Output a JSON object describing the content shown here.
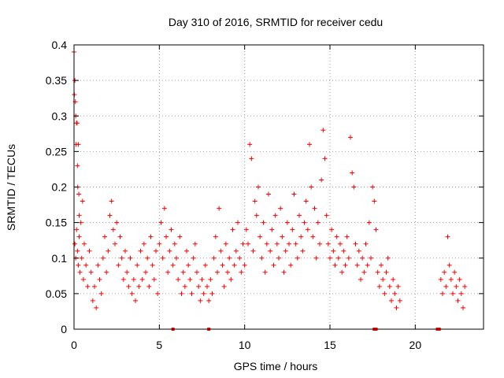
{
  "chart_data": {
    "type": "scatter",
    "title": "Day 310 of 2016, SRMTID for receiver cedu",
    "xlabel": "GPS time / hours",
    "ylabel": "SRMTID / TECUs",
    "xlim": [
      0,
      24
    ],
    "ylim": [
      0,
      0.4
    ],
    "x_ticks": [
      0,
      5,
      10,
      15,
      20
    ],
    "x_tick_labels": [
      "0",
      "5",
      "10",
      "15",
      "20"
    ],
    "y_ticks": [
      0,
      0.05,
      0.1,
      0.15,
      0.2,
      0.25,
      0.3,
      0.35,
      0.4
    ],
    "y_tick_labels": [
      "0",
      "0.05",
      "0.1",
      "0.15",
      "0.2",
      "0.25",
      "0.3",
      "0.35",
      "0.4"
    ],
    "grid": true,
    "marker": "+",
    "color": "#ff0000",
    "series": [
      {
        "name": "SRMTID",
        "points": [
          [
            0.0,
            0.39
          ],
          [
            0.02,
            0.33
          ],
          [
            0.05,
            0.35
          ],
          [
            0.08,
            0.32
          ],
          [
            0.1,
            0.3
          ],
          [
            0.12,
            0.26
          ],
          [
            0.15,
            0.29
          ],
          [
            0.18,
            0.29
          ],
          [
            0.2,
            0.23
          ],
          [
            0.22,
            0.2
          ],
          [
            0.25,
            0.26
          ],
          [
            0.28,
            0.19
          ],
          [
            0.3,
            0.16
          ],
          [
            0.05,
            0.12
          ],
          [
            0.1,
            0.1
          ],
          [
            0.15,
            0.14
          ],
          [
            0.2,
            0.11
          ],
          [
            0.25,
            0.09
          ],
          [
            0.3,
            0.13
          ],
          [
            0.35,
            0.08
          ],
          [
            0.4,
            0.15
          ],
          [
            0.45,
            0.1
          ],
          [
            0.5,
            0.18
          ],
          [
            0.55,
            0.07
          ],
          [
            0.6,
            0.12
          ],
          [
            0.7,
            0.09
          ],
          [
            0.8,
            0.06
          ],
          [
            0.9,
            0.11
          ],
          [
            1.0,
            0.08
          ],
          [
            1.1,
            0.04
          ],
          [
            1.2,
            0.06
          ],
          [
            1.3,
            0.03
          ],
          [
            1.4,
            0.09
          ],
          [
            1.5,
            0.07
          ],
          [
            1.6,
            0.05
          ],
          [
            1.7,
            0.1
          ],
          [
            1.8,
            0.13
          ],
          [
            1.9,
            0.08
          ],
          [
            2.0,
            0.11
          ],
          [
            2.1,
            0.16
          ],
          [
            2.2,
            0.18
          ],
          [
            2.3,
            0.14
          ],
          [
            2.4,
            0.12
          ],
          [
            2.5,
            0.15
          ],
          [
            2.6,
            0.09
          ],
          [
            2.7,
            0.13
          ],
          [
            2.8,
            0.1
          ],
          [
            2.9,
            0.07
          ],
          [
            3.0,
            0.11
          ],
          [
            3.1,
            0.08
          ],
          [
            3.2,
            0.06
          ],
          [
            3.3,
            0.1
          ],
          [
            3.4,
            0.05
          ],
          [
            3.5,
            0.07
          ],
          [
            3.6,
            0.04
          ],
          [
            3.7,
            0.09
          ],
          [
            3.8,
            0.06
          ],
          [
            3.9,
            0.11
          ],
          [
            4.0,
            0.07
          ],
          [
            4.1,
            0.12
          ],
          [
            4.2,
            0.08
          ],
          [
            4.3,
            0.1
          ],
          [
            4.4,
            0.06
          ],
          [
            4.5,
            0.13
          ],
          [
            4.6,
            0.09
          ],
          [
            4.7,
            0.07
          ],
          [
            4.8,
            0.11
          ],
          [
            4.9,
            0.05
          ],
          [
            5.0,
            0.12
          ],
          [
            5.1,
            0.15
          ],
          [
            5.2,
            0.1
          ],
          [
            5.3,
            0.17
          ],
          [
            5.4,
            0.13
          ],
          [
            5.5,
            0.08
          ],
          [
            5.6,
            0.11
          ],
          [
            5.7,
            0.14
          ],
          [
            5.8,
            0.09
          ],
          [
            5.9,
            0.12
          ],
          [
            6.0,
            0.1
          ],
          [
            6.1,
            0.07
          ],
          [
            6.2,
            0.13
          ],
          [
            6.3,
            0.05
          ],
          [
            6.4,
            0.08
          ],
          [
            6.5,
            0.06
          ],
          [
            6.6,
            0.11
          ],
          [
            6.7,
            0.09
          ],
          [
            6.8,
            0.07
          ],
          [
            6.9,
            0.05
          ],
          [
            7.0,
            0.1
          ],
          [
            7.1,
            0.12
          ],
          [
            7.2,
            0.08
          ],
          [
            7.3,
            0.06
          ],
          [
            7.4,
            0.04
          ],
          [
            7.5,
            0.07
          ],
          [
            7.6,
            0.05
          ],
          [
            7.7,
            0.09
          ],
          [
            7.8,
            0.06
          ],
          [
            7.9,
            0.04
          ],
          [
            8.0,
            0.07
          ],
          [
            8.1,
            0.05
          ],
          [
            8.2,
            0.1
          ],
          [
            8.3,
            0.13
          ],
          [
            8.4,
            0.08
          ],
          [
            8.5,
            0.17
          ],
          [
            8.6,
            0.11
          ],
          [
            8.7,
            0.09
          ],
          [
            8.8,
            0.06
          ],
          [
            8.9,
            0.12
          ],
          [
            9.0,
            0.08
          ],
          [
            9.1,
            0.1
          ],
          [
            9.2,
            0.07
          ],
          [
            9.3,
            0.14
          ],
          [
            9.4,
            0.09
          ],
          [
            9.5,
            0.11
          ],
          [
            9.6,
            0.15
          ],
          [
            9.7,
            0.1
          ],
          [
            9.8,
            0.08
          ],
          [
            9.9,
            0.12
          ],
          [
            10.0,
            0.09
          ],
          [
            10.1,
            0.14
          ],
          [
            10.2,
            0.12
          ],
          [
            10.3,
            0.26
          ],
          [
            10.4,
            0.24
          ],
          [
            10.5,
            0.11
          ],
          [
            10.6,
            0.18
          ],
          [
            10.7,
            0.16
          ],
          [
            10.8,
            0.2
          ],
          [
            10.9,
            0.13
          ],
          [
            11.0,
            0.1
          ],
          [
            11.1,
            0.15
          ],
          [
            11.2,
            0.08
          ],
          [
            11.3,
            0.12
          ],
          [
            11.4,
            0.19
          ],
          [
            11.5,
            0.11
          ],
          [
            11.6,
            0.14
          ],
          [
            11.7,
            0.09
          ],
          [
            11.8,
            0.16
          ],
          [
            11.9,
            0.12
          ],
          [
            12.0,
            0.1
          ],
          [
            12.1,
            0.17
          ],
          [
            12.2,
            0.13
          ],
          [
            12.3,
            0.08
          ],
          [
            12.4,
            0.11
          ],
          [
            12.5,
            0.15
          ],
          [
            12.6,
            0.12
          ],
          [
            12.7,
            0.09
          ],
          [
            12.8,
            0.14
          ],
          [
            12.9,
            0.19
          ],
          [
            13.0,
            0.12
          ],
          [
            13.1,
            0.1
          ],
          [
            13.2,
            0.16
          ],
          [
            13.3,
            0.13
          ],
          [
            13.4,
            0.11
          ],
          [
            13.5,
            0.15
          ],
          [
            13.6,
            0.18
          ],
          [
            13.7,
            0.14
          ],
          [
            13.8,
            0.26
          ],
          [
            13.9,
            0.2
          ],
          [
            14.0,
            0.13
          ],
          [
            14.1,
            0.17
          ],
          [
            14.2,
            0.1
          ],
          [
            14.3,
            0.15
          ],
          [
            14.4,
            0.12
          ],
          [
            14.5,
            0.21
          ],
          [
            14.6,
            0.28
          ],
          [
            14.7,
            0.24
          ],
          [
            14.8,
            0.16
          ],
          [
            14.9,
            0.12
          ],
          [
            15.0,
            0.1
          ],
          [
            15.1,
            0.14
          ],
          [
            15.2,
            0.11
          ],
          [
            15.3,
            0.09
          ],
          [
            15.4,
            0.13
          ],
          [
            15.5,
            0.1
          ],
          [
            15.6,
            0.12
          ],
          [
            15.7,
            0.08
          ],
          [
            15.8,
            0.11
          ],
          [
            15.9,
            0.09
          ],
          [
            16.0,
            0.13
          ],
          [
            16.1,
            0.1
          ],
          [
            16.2,
            0.27
          ],
          [
            16.3,
            0.22
          ],
          [
            16.4,
            0.2
          ],
          [
            16.5,
            0.12
          ],
          [
            16.6,
            0.09
          ],
          [
            16.7,
            0.11
          ],
          [
            16.8,
            0.07
          ],
          [
            16.9,
            0.1
          ],
          [
            17.0,
            0.08
          ],
          [
            17.1,
            0.12
          ],
          [
            17.2,
            0.09
          ],
          [
            17.3,
            0.15
          ],
          [
            17.4,
            0.1
          ],
          [
            17.5,
            0.2
          ],
          [
            17.6,
            0.18
          ],
          [
            17.7,
            0.14
          ],
          [
            17.8,
            0.08
          ],
          [
            17.9,
            0.06
          ],
          [
            18.0,
            0.09
          ],
          [
            18.1,
            0.07
          ],
          [
            18.2,
            0.05
          ],
          [
            18.3,
            0.08
          ],
          [
            18.4,
            0.1
          ],
          [
            18.5,
            0.06
          ],
          [
            18.6,
            0.04
          ],
          [
            18.7,
            0.07
          ],
          [
            18.8,
            0.05
          ],
          [
            18.9,
            0.03
          ],
          [
            19.0,
            0.06
          ],
          [
            19.1,
            0.04
          ],
          [
            21.5,
            0.07
          ],
          [
            21.6,
            0.05
          ],
          [
            21.7,
            0.08
          ],
          [
            21.8,
            0.06
          ],
          [
            21.9,
            0.13
          ],
          [
            22.0,
            0.09
          ],
          [
            22.1,
            0.07
          ],
          [
            22.2,
            0.05
          ],
          [
            22.3,
            0.08
          ],
          [
            22.4,
            0.06
          ],
          [
            22.5,
            0.04
          ],
          [
            22.6,
            0.07
          ],
          [
            22.7,
            0.05
          ],
          [
            22.8,
            0.03
          ],
          [
            22.9,
            0.06
          ]
        ]
      }
    ],
    "zero_markers_x": [
      5.8,
      7.9,
      17.6,
      17.7,
      21.3,
      21.4
    ]
  }
}
